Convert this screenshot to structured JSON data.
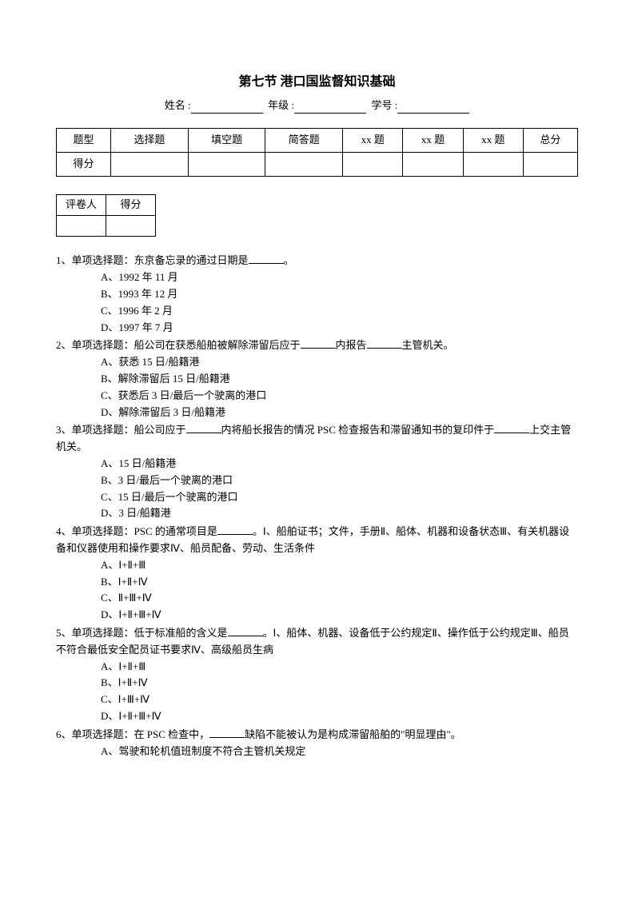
{
  "title": "第七节  港口国监督知识基础",
  "info": {
    "name_label": "姓名 :",
    "grade_label": "年级 :",
    "id_label": "学号 :"
  },
  "score_table": {
    "headers": [
      "题型",
      "选择题",
      "填空题",
      "简答题",
      "xx 题",
      "xx 题",
      "xx 题",
      "总分"
    ],
    "row_label": "得分"
  },
  "grader_table": {
    "c1": "评卷人",
    "c2": "得分"
  },
  "questions": [
    {
      "num": "1、",
      "type": "单项选择题：",
      "stem": "东京备忘录的通过日期是______。",
      "options": [
        "A、1992 年 11 月",
        "B、1993 年 12 月",
        "C、1996 年 2 月",
        "D、1997 年 7 月"
      ]
    },
    {
      "num": "2、",
      "type": "单项选择题：",
      "stem": "船公司在获悉船舶被解除滞留后应于______内报告______主管机关。",
      "options": [
        "A、获悉 15 日/船籍港",
        "B、解除滞留后 15 日/船籍港",
        "C、获悉后 3 日/最后一个驶离的港口",
        "D、解除滞留后 3 日/船籍港"
      ]
    },
    {
      "num": "3、",
      "type": "单项选择题：",
      "stem": "船公司应于______内将船长报告的情况 PSC 检查报告和滞留通知书的复印件于______上交主管机关。",
      "options": [
        "A、15 日/船籍港",
        "B、3 日/最后一个驶离的港口",
        "C、15 日/最后一个驶离的港口",
        "D、3 日/船籍港"
      ]
    },
    {
      "num": "4、",
      "type": "单项选择题：",
      "stem": "PSC 的通常项目是______。Ⅰ、船舶证书；文件，手册Ⅱ、船体、机器和设备状态Ⅲ、有关机器设备和仪器使用和操作要求Ⅳ、船员配备、劳动、生活条件",
      "options": [
        "A、Ⅰ+Ⅱ+Ⅲ",
        "B、Ⅰ+Ⅱ+Ⅳ",
        "C、Ⅱ+Ⅲ+Ⅳ",
        "D、Ⅰ+Ⅱ+Ⅲ+Ⅳ"
      ]
    },
    {
      "num": "5、",
      "type": "单项选择题：",
      "stem": "低于标准船的含义是______。Ⅰ、船体、机器、设备低于公约规定Ⅱ、操作低于公约规定Ⅲ、船员不符合最低安全配员证书要求Ⅳ、高级船员生病",
      "options": [
        "A、Ⅰ+Ⅱ+Ⅲ",
        "B、Ⅰ+Ⅱ+Ⅳ",
        "C、Ⅰ+Ⅲ+Ⅳ",
        "D、Ⅰ+Ⅱ+Ⅲ+Ⅳ"
      ]
    },
    {
      "num": "6、",
      "type": "单项选择题：",
      "stem": "在 PSC 检查中，______缺陷不能被认为是构成滞留船舶的\"明显理由\"。",
      "options": [
        "A、驾驶和轮机值班制度不符合主管机关规定"
      ]
    }
  ]
}
